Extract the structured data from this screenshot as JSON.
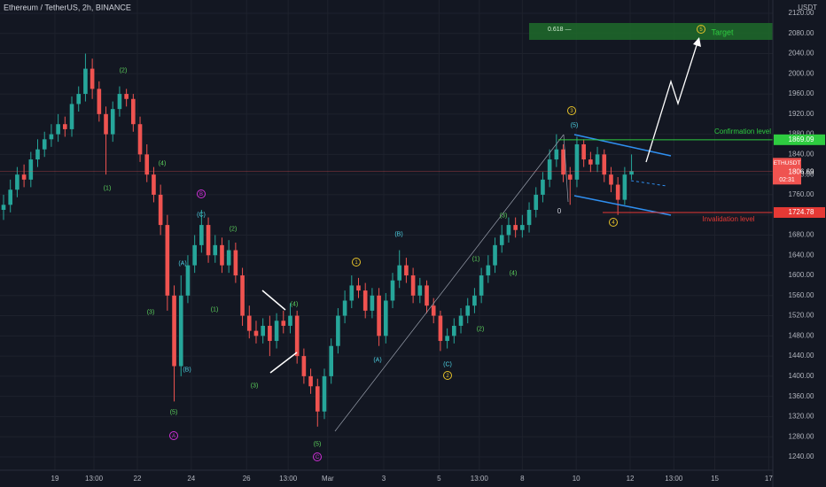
{
  "chart_data": {
    "type": "candlestick",
    "title": "Ethereum / TetherUS, 2h, BINANCE",
    "currency": "USDT",
    "symbol": "ETHUSDT",
    "countdown": "02:31",
    "up_color": "#26a69a",
    "down_color": "#ef5350",
    "grid": true,
    "xlim": [
      -0.52,
      112.7
    ],
    "ylim": [
      1213.6,
      2146.3
    ],
    "xticks": [
      {
        "value": 7.53,
        "label": "19"
      },
      {
        "value": 13.25,
        "label": "13:00"
      },
      {
        "value": 19.6,
        "label": "22"
      },
      {
        "value": 27.5,
        "label": "24"
      },
      {
        "value": 35.6,
        "label": "26"
      },
      {
        "value": 41.7,
        "label": "13:00"
      },
      {
        "value": 47.5,
        "label": "Mar"
      },
      {
        "value": 55.7,
        "label": "3"
      },
      {
        "value": 63.8,
        "label": "5"
      },
      {
        "value": 69.7,
        "label": "13:00"
      },
      {
        "value": 76,
        "label": "8"
      },
      {
        "value": 83.9,
        "label": "10"
      },
      {
        "value": 91.8,
        "label": "12"
      },
      {
        "value": 98.2,
        "label": "13:00"
      },
      {
        "value": 104.2,
        "label": "15"
      },
      {
        "value": 112.1,
        "label": "17"
      }
    ],
    "yticks": [
      {
        "value": 1240,
        "label": "1240.00"
      },
      {
        "value": 1280,
        "label": "1280.00"
      },
      {
        "value": 1320,
        "label": "1320.00"
      },
      {
        "value": 1360,
        "label": "1360.00"
      },
      {
        "value": 1400,
        "label": "1400.00"
      },
      {
        "value": 1440,
        "label": "1440.00"
      },
      {
        "value": 1480,
        "label": "1480.00"
      },
      {
        "value": 1520,
        "label": "1520.00"
      },
      {
        "value": 1560,
        "label": "1560.00"
      },
      {
        "value": 1600,
        "label": "1600.00"
      },
      {
        "value": 1640,
        "label": "1640.00"
      },
      {
        "value": 1680,
        "label": "1680.00"
      },
      {
        "value": 1720,
        "label": "1720.00"
      },
      {
        "value": 1760,
        "label": "1760.00"
      },
      {
        "value": 1800,
        "label": "1800.00"
      },
      {
        "value": 1840,
        "label": "1840.00"
      },
      {
        "value": 1880,
        "label": "1880.00"
      },
      {
        "value": 1920,
        "label": "1920.00"
      },
      {
        "value": 1960,
        "label": "1960.00"
      },
      {
        "value": 2000,
        "label": "2000.00"
      },
      {
        "value": 2040,
        "label": "2040.00"
      },
      {
        "value": 2080,
        "label": "2080.00"
      },
      {
        "value": 2120,
        "label": "2120.00"
      }
    ],
    "open": [
      1730,
      1740,
      1770,
      1800,
      1790,
      1830,
      1850,
      1870,
      1880,
      1900,
      1890,
      1940,
      1960,
      2010,
      1970,
      1920,
      1880,
      1930,
      1960,
      1950,
      1900,
      1840,
      1800,
      1760,
      1700,
      1560,
      1420,
      1560,
      1620,
      1660,
      1700,
      1640,
      1660,
      1620,
      1650,
      1600,
      1520,
      1490,
      1480,
      1500,
      1470,
      1510,
      1500,
      1520,
      1440,
      1400,
      1380,
      1330,
      1400,
      1460,
      1520,
      1550,
      1580,
      1570,
      1530,
      1560,
      1480,
      1550,
      1590,
      1620,
      1600,
      1560,
      1580,
      1540,
      1520,
      1470,
      1480,
      1500,
      1520,
      1540,
      1560,
      1600,
      1620,
      1660,
      1680,
      1700,
      1690,
      1700,
      1730,
      1760,
      1790,
      1830,
      1850,
      1800,
      1790,
      1860,
      1830,
      1820,
      1840,
      1800,
      1780,
      1750,
      1800
    ],
    "high": [
      1760,
      1790,
      1815,
      1820,
      1845,
      1870,
      1885,
      1900,
      1920,
      1915,
      1955,
      1975,
      2040,
      2030,
      1985,
      1935,
      1945,
      1975,
      1970,
      1960,
      1915,
      1860,
      1815,
      1780,
      1720,
      1580,
      1600,
      1640,
      1680,
      1730,
      1715,
      1680,
      1675,
      1670,
      1665,
      1615,
      1540,
      1510,
      1515,
      1520,
      1525,
      1530,
      1545,
      1530,
      1455,
      1415,
      1395,
      1415,
      1475,
      1535,
      1570,
      1600,
      1595,
      1585,
      1575,
      1575,
      1565,
      1605,
      1650,
      1635,
      1615,
      1595,
      1590,
      1555,
      1530,
      1495,
      1515,
      1535,
      1555,
      1575,
      1615,
      1640,
      1675,
      1700,
      1715,
      1715,
      1720,
      1745,
      1775,
      1805,
      1850,
      1880,
      1860,
      1815,
      1875,
      1870,
      1845,
      1855,
      1850,
      1815,
      1795,
      1815,
      1840
    ],
    "low": [
      1710,
      1725,
      1755,
      1775,
      1775,
      1815,
      1835,
      1855,
      1865,
      1875,
      1875,
      1925,
      1945,
      1950,
      1905,
      1800,
      1865,
      1915,
      1935,
      1885,
      1825,
      1785,
      1745,
      1680,
      1530,
      1350,
      1400,
      1545,
      1605,
      1645,
      1625,
      1625,
      1605,
      1605,
      1585,
      1500,
      1475,
      1465,
      1465,
      1440,
      1455,
      1485,
      1485,
      1425,
      1385,
      1365,
      1300,
      1315,
      1385,
      1445,
      1505,
      1535,
      1555,
      1515,
      1515,
      1460,
      1465,
      1535,
      1575,
      1585,
      1545,
      1545,
      1525,
      1505,
      1450,
      1455,
      1465,
      1485,
      1505,
      1525,
      1545,
      1585,
      1605,
      1645,
      1665,
      1675,
      1675,
      1685,
      1715,
      1745,
      1775,
      1815,
      1785,
      1740,
      1775,
      1815,
      1805,
      1805,
      1785,
      1765,
      1720,
      1740,
      1790
    ],
    "close": [
      1740,
      1770,
      1800,
      1790,
      1830,
      1850,
      1870,
      1880,
      1900,
      1890,
      1940,
      1960,
      2010,
      1970,
      1920,
      1880,
      1930,
      1960,
      1950,
      1900,
      1840,
      1800,
      1760,
      1700,
      1560,
      1420,
      1560,
      1620,
      1660,
      1700,
      1640,
      1660,
      1620,
      1650,
      1600,
      1520,
      1490,
      1480,
      1500,
      1470,
      1510,
      1500,
      1520,
      1440,
      1400,
      1380,
      1330,
      1400,
      1460,
      1520,
      1550,
      1580,
      1570,
      1530,
      1560,
      1480,
      1550,
      1590,
      1620,
      1600,
      1560,
      1580,
      1540,
      1520,
      1470,
      1480,
      1500,
      1520,
      1540,
      1560,
      1600,
      1620,
      1660,
      1680,
      1700,
      1690,
      1700,
      1730,
      1760,
      1790,
      1830,
      1850,
      1800,
      1790,
      1860,
      1830,
      1820,
      1840,
      1800,
      1780,
      1750,
      1800,
      1806.69
    ],
    "confirmation": {
      "label": "Confirmation level",
      "value": 1869.09,
      "color": "#2ecc40"
    },
    "invalidation": {
      "label": "Invalidation level",
      "value": 1724.78,
      "color": "#e53935"
    },
    "target": {
      "label": "Target",
      "fib_label": "0.618 —",
      "color": "#2ecc40"
    },
    "pivot_label": "0",
    "annotations": [
      {
        "text": "(2)",
        "color": "#5dd35d"
      },
      {
        "text": "(4)",
        "color": "#5dd35d"
      },
      {
        "text": "(1)",
        "color": "#5dd35d"
      },
      {
        "text": "(3)",
        "color": "#5dd35d"
      },
      {
        "text": "(5)",
        "color": "#5dd35d"
      },
      {
        "text": "(2)",
        "color": "#5dd35d"
      },
      {
        "text": "(1)",
        "color": "#5dd35d"
      },
      {
        "text": "(3)",
        "color": "#5dd35d"
      },
      {
        "text": "(4)",
        "color": "#5dd35d"
      },
      {
        "text": "(5)",
        "color": "#5dd35d"
      },
      {
        "text": "(1)",
        "color": "#5dd35d"
      },
      {
        "text": "(2)",
        "color": "#5dd35d"
      },
      {
        "text": "(3)",
        "color": "#5dd35d"
      },
      {
        "text": "(4)",
        "color": "#5dd35d"
      },
      {
        "text": "(C)",
        "color": "#4dd0e1"
      },
      {
        "text": "(A)",
        "color": "#4dd0e1"
      },
      {
        "text": "(B)",
        "color": "#4dd0e1"
      },
      {
        "text": "(A)",
        "color": "#4dd0e1"
      },
      {
        "text": "(B)",
        "color": "#4dd0e1"
      },
      {
        "text": "(C)",
        "color": "#4dd0e1"
      },
      {
        "text": "(5)",
        "color": "#4dd0e1"
      },
      {
        "text": "B",
        "color": "#d02fd8",
        "circled": true
      },
      {
        "text": "A",
        "color": "#d02fd8",
        "circled": true
      },
      {
        "text": "C",
        "color": "#d02fd8",
        "circled": true
      },
      {
        "text": "3",
        "color": "#e6c229",
        "circled": true
      },
      {
        "text": "1",
        "color": "#e6c229",
        "circled": true
      },
      {
        "text": "2",
        "color": "#e6c229",
        "circled": true
      },
      {
        "text": "4",
        "color": "#e6c229",
        "circled": true
      },
      {
        "text": "5",
        "color": "#e6c229",
        "circled": true
      }
    ]
  }
}
